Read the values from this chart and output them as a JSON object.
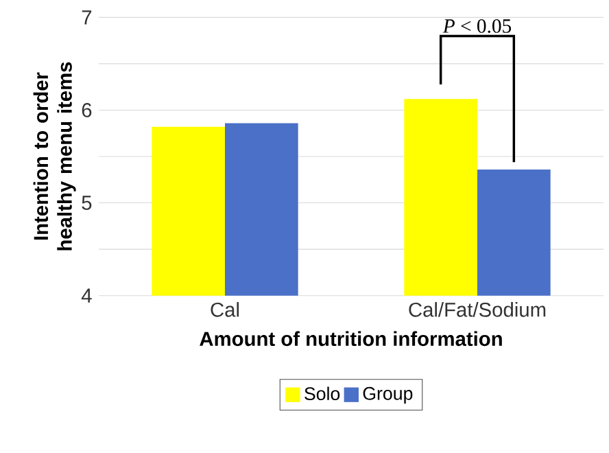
{
  "chart_data": {
    "type": "bar",
    "xlabel": "Amount of nutrition information",
    "ylabel": "Intention to order healthy menu items",
    "categories": [
      "Cal",
      "Cal/Fat/Sodium"
    ],
    "series": [
      {
        "name": "Solo",
        "color": "#ffff00",
        "values": [
          5.82,
          6.12
        ]
      },
      {
        "name": "Group",
        "color": "#4a70c8",
        "values": [
          5.86,
          5.36
        ]
      }
    ],
    "ylim": [
      4,
      7
    ],
    "yticks": [
      4,
      {
        "value": 4.5,
        "label": null
      },
      5,
      {
        "value": 5.5,
        "label": null
      },
      6,
      {
        "value": 6.5,
        "label": null
      },
      7
    ],
    "grid": "y",
    "legend": "bottom",
    "annotations": [
      "*P* < 0.05"
    ]
  }
}
